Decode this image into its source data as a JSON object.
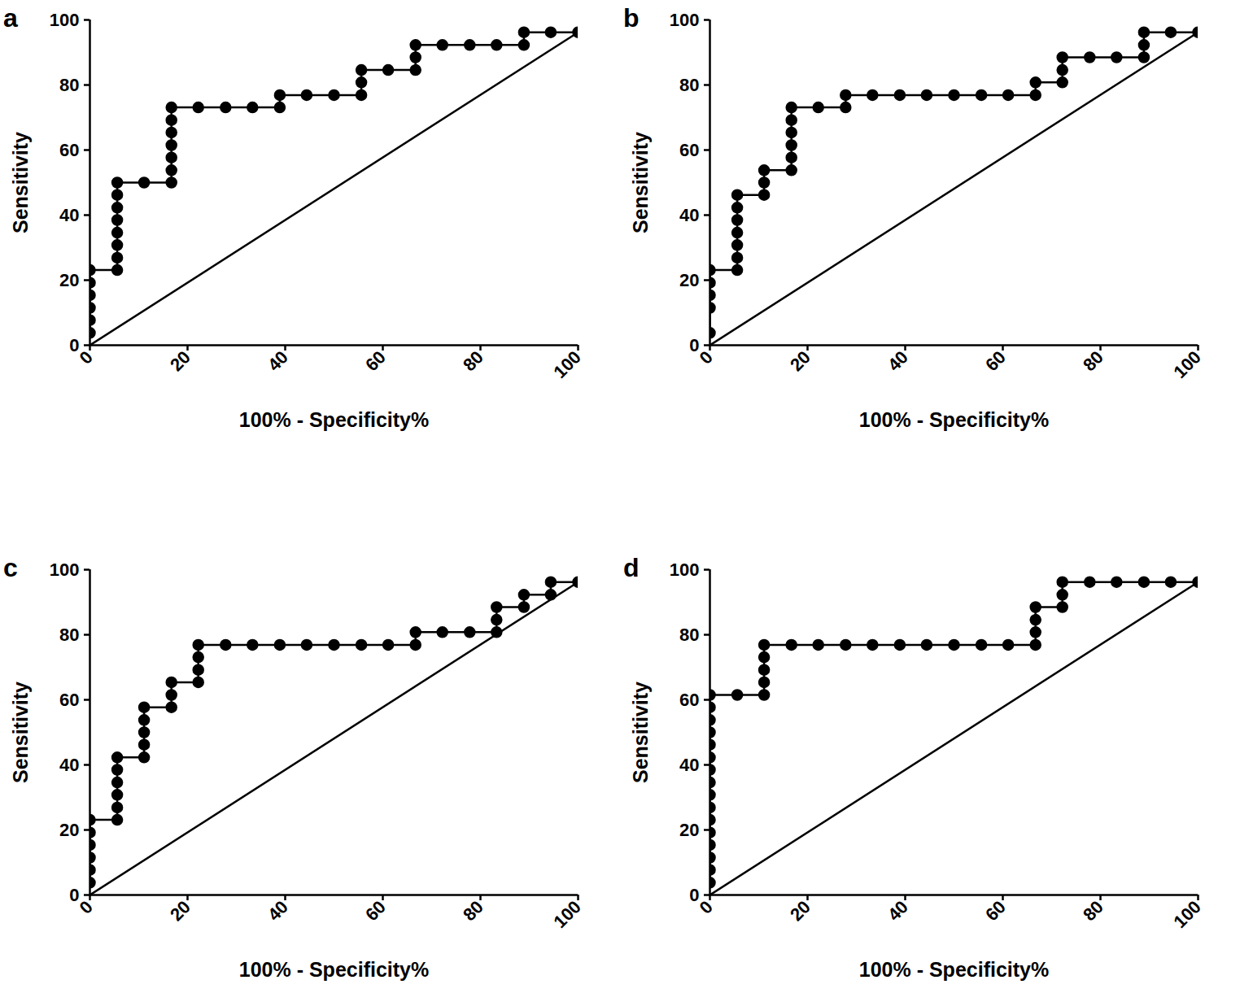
{
  "chart_data": [
    {
      "type": "line",
      "title": "a",
      "xlabel": "100% - Specificity%",
      "ylabel": "Sensitivity",
      "xlim": [
        0,
        100
      ],
      "ylim": [
        0,
        100
      ],
      "xticks": [
        0,
        20,
        40,
        60,
        80,
        100
      ],
      "yticks": [
        0,
        20,
        40,
        60,
        80,
        100
      ],
      "series": [
        {
          "color": "#000000",
          "marker": "circle",
          "line_style": "solid",
          "x": [
            0,
            0,
            0,
            0,
            0,
            0,
            5.6,
            5.6,
            5.6,
            5.6,
            5.6,
            5.6,
            5.6,
            5.6,
            11.1,
            16.7,
            16.7,
            16.7,
            16.7,
            16.7,
            16.7,
            16.7,
            22.2,
            27.8,
            33.3,
            38.9,
            38.9,
            44.4,
            50,
            55.6,
            55.6,
            55.6,
            61.1,
            66.7,
            66.7,
            66.7,
            72.2,
            77.8,
            83.3,
            88.9,
            88.9,
            94.4,
            100
          ],
          "values": [
            3.8,
            7.7,
            11.5,
            15.4,
            19.2,
            23.1,
            23.1,
            26.9,
            30.8,
            34.6,
            38.5,
            42.3,
            46.2,
            50,
            50,
            50,
            53.8,
            57.7,
            61.5,
            65.4,
            69.2,
            73.1,
            73.1,
            73.1,
            73.1,
            73.1,
            76.9,
            76.9,
            76.9,
            76.9,
            80.8,
            84.6,
            84.6,
            84.6,
            88.5,
            92.3,
            92.3,
            92.3,
            92.3,
            92.3,
            96.2,
            96.2,
            96.2
          ]
        },
        {
          "color": "#000000",
          "marker": "none",
          "line_style": "solid",
          "x": [
            0,
            100
          ],
          "values": [
            0,
            96.2
          ]
        }
      ]
    },
    {
      "type": "line",
      "title": "b",
      "xlabel": "100% - Specificity%",
      "ylabel": "Sensitivity",
      "xlim": [
        0,
        100
      ],
      "ylim": [
        0,
        100
      ],
      "xticks": [
        0,
        20,
        40,
        60,
        80,
        100
      ],
      "yticks": [
        0,
        20,
        40,
        60,
        80,
        100
      ],
      "series": [
        {
          "color": "#000000",
          "marker": "circle",
          "line_style": "solid",
          "x": [
            0,
            0,
            0,
            0,
            0,
            5.6,
            5.6,
            5.6,
            5.6,
            5.6,
            5.6,
            5.6,
            11.1,
            11.1,
            11.1,
            16.7,
            16.7,
            16.7,
            16.7,
            16.7,
            16.7,
            22.2,
            27.8,
            27.8,
            33.3,
            38.9,
            44.4,
            50,
            55.6,
            61.1,
            66.7,
            66.7,
            72.2,
            72.2,
            72.2,
            77.8,
            83.3,
            88.9,
            88.9,
            88.9,
            94.4,
            100
          ],
          "values": [
            3.8,
            11.5,
            15.4,
            19.2,
            23.1,
            23.1,
            26.9,
            30.8,
            34.6,
            38.5,
            42.3,
            46.2,
            46.2,
            50,
            53.8,
            53.8,
            57.7,
            61.5,
            65.4,
            69.2,
            73.1,
            73.1,
            73.1,
            76.9,
            76.9,
            76.9,
            76.9,
            76.9,
            76.9,
            76.9,
            76.9,
            80.8,
            80.8,
            84.6,
            88.5,
            88.5,
            88.5,
            88.5,
            92.3,
            96.2,
            96.2,
            96.2
          ]
        },
        {
          "color": "#000000",
          "marker": "none",
          "line_style": "solid",
          "x": [
            0,
            100
          ],
          "values": [
            0,
            96.2
          ]
        }
      ]
    },
    {
      "type": "line",
      "title": "c",
      "xlabel": "100% - Specificity%",
      "ylabel": "Sensitivity",
      "xlim": [
        0,
        100
      ],
      "ylim": [
        0,
        100
      ],
      "xticks": [
        0,
        20,
        40,
        60,
        80,
        100
      ],
      "yticks": [
        0,
        20,
        40,
        60,
        80,
        100
      ],
      "series": [
        {
          "color": "#000000",
          "marker": "circle",
          "line_style": "solid",
          "x": [
            0,
            0,
            0,
            0,
            0,
            0,
            5.6,
            5.6,
            5.6,
            5.6,
            5.6,
            5.6,
            11.1,
            11.1,
            11.1,
            11.1,
            11.1,
            16.7,
            16.7,
            16.7,
            22.2,
            22.2,
            22.2,
            22.2,
            27.8,
            33.3,
            38.9,
            44.4,
            50,
            55.6,
            61.1,
            66.7,
            66.7,
            72.2,
            77.8,
            83.3,
            83.3,
            83.3,
            88.9,
            88.9,
            94.4,
            94.4,
            100
          ],
          "values": [
            3.8,
            7.7,
            11.5,
            15.4,
            19.2,
            23.1,
            23.1,
            26.9,
            30.8,
            34.6,
            38.5,
            42.3,
            42.3,
            46.2,
            50,
            53.8,
            57.7,
            57.7,
            61.5,
            65.4,
            65.4,
            69.2,
            73.1,
            76.9,
            76.9,
            76.9,
            76.9,
            76.9,
            76.9,
            76.9,
            76.9,
            76.9,
            80.8,
            80.8,
            80.8,
            80.8,
            84.6,
            88.5,
            88.5,
            92.3,
            92.3,
            96.2,
            96.2
          ]
        },
        {
          "color": "#000000",
          "marker": "none",
          "line_style": "solid",
          "x": [
            0,
            100
          ],
          "values": [
            0,
            96.2
          ]
        }
      ]
    },
    {
      "type": "line",
      "title": "d",
      "xlabel": "100% - Specificity%",
      "ylabel": "Sensitivity",
      "xlim": [
        0,
        100
      ],
      "ylim": [
        0,
        100
      ],
      "xticks": [
        0,
        20,
        40,
        60,
        80,
        100
      ],
      "yticks": [
        0,
        20,
        40,
        60,
        80,
        100
      ],
      "series": [
        {
          "color": "#000000",
          "marker": "circle",
          "line_style": "solid",
          "x": [
            0,
            0,
            0,
            0,
            0,
            0,
            0,
            0,
            0,
            0,
            0,
            0,
            0,
            0,
            0,
            0,
            5.6,
            11.1,
            11.1,
            11.1,
            11.1,
            11.1,
            16.7,
            22.2,
            27.8,
            33.3,
            38.9,
            44.4,
            50,
            55.6,
            61.1,
            66.7,
            66.7,
            66.7,
            66.7,
            72.2,
            72.2,
            72.2,
            77.8,
            83.3,
            88.9,
            94.4,
            100
          ],
          "values": [
            3.8,
            7.7,
            11.5,
            15.4,
            19.2,
            23.1,
            26.9,
            30.8,
            34.6,
            38.5,
            42.3,
            46.2,
            50,
            53.8,
            57.7,
            61.5,
            61.5,
            61.5,
            65.4,
            69.2,
            73.1,
            76.9,
            76.9,
            76.9,
            76.9,
            76.9,
            76.9,
            76.9,
            76.9,
            76.9,
            76.9,
            76.9,
            80.8,
            84.6,
            88.5,
            88.5,
            92.3,
            96.2,
            96.2,
            96.2,
            96.2,
            96.2,
            96.2
          ]
        },
        {
          "color": "#000000",
          "marker": "none",
          "line_style": "solid",
          "x": [
            0,
            100
          ],
          "values": [
            0,
            96.2
          ]
        }
      ]
    }
  ]
}
